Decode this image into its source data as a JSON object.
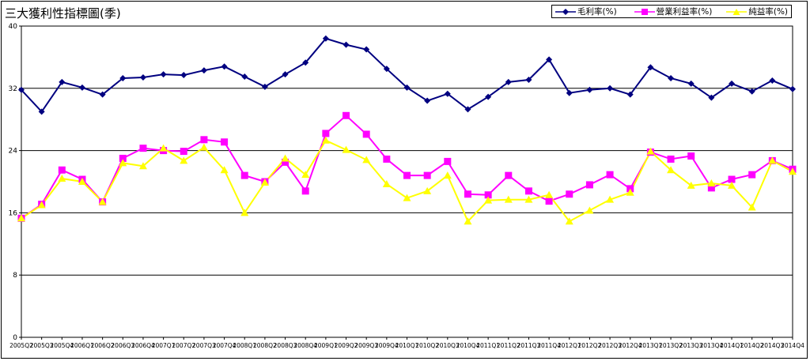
{
  "chart_data": {
    "type": "line",
    "title": "三大獲利性指標圖(季)",
    "ylim": [
      0,
      40
    ],
    "yticks": [
      0,
      8,
      16,
      24,
      32,
      40
    ],
    "grid": true,
    "legend_position": "top-right",
    "categories": [
      "2005Q2",
      "2005Q3",
      "2005Q4",
      "2006Q1",
      "2006Q2",
      "2006Q3",
      "2006Q4",
      "2007Q1",
      "2007Q2",
      "2007Q3",
      "2007Q4",
      "2008Q1",
      "2008Q2",
      "2008Q3",
      "2008Q4",
      "2009Q1",
      "2009Q2",
      "2009Q3",
      "2009Q4",
      "2010Q1",
      "2010Q2",
      "2010Q3",
      "2010Q4",
      "2011Q1",
      "2011Q2",
      "2011Q3",
      "2011Q4",
      "2012Q1",
      "2012Q2",
      "2012Q3",
      "2012Q4",
      "2013Q1",
      "2013Q2",
      "2013Q3",
      "2013Q4",
      "2014Q1",
      "2014Q2",
      "2014Q3",
      "2014Q4"
    ],
    "series": [
      {
        "name": "毛利率(%)",
        "color": "#000080",
        "marker": "diamond",
        "values": [
          31.8,
          29.0,
          32.8,
          32.1,
          31.2,
          33.3,
          33.4,
          33.8,
          33.7,
          34.3,
          34.8,
          33.5,
          32.2,
          33.8,
          35.3,
          38.4,
          37.6,
          37.0,
          34.5,
          32.1,
          30.4,
          31.3,
          29.3,
          30.9,
          32.8,
          33.1,
          35.7,
          31.4,
          31.8,
          32.0,
          31.2,
          34.7,
          33.3,
          32.6,
          30.8,
          32.6,
          31.6,
          33.0,
          31.9
        ]
      },
      {
        "name": "營業利益率(%)",
        "color": "#FF00FF",
        "marker": "square",
        "values": [
          15.3,
          17.1,
          21.5,
          20.3,
          17.4,
          23.0,
          24.3,
          24.0,
          23.9,
          25.4,
          25.1,
          20.8,
          20.0,
          22.5,
          18.8,
          26.2,
          28.5,
          26.1,
          22.9,
          20.8,
          20.8,
          22.6,
          18.4,
          18.3,
          20.8,
          18.8,
          17.5,
          18.4,
          19.6,
          20.9,
          19.1,
          23.8,
          22.9,
          23.3,
          19.2,
          20.3,
          20.9,
          22.7,
          21.6
        ]
      },
      {
        "name": "純益率(%)",
        "color": "#FFFF00",
        "marker": "triangle",
        "values": [
          15.3,
          17.0,
          20.4,
          20.0,
          17.4,
          22.4,
          22.0,
          24.3,
          22.7,
          24.4,
          21.5,
          16.0,
          19.9,
          23.0,
          20.9,
          25.3,
          24.1,
          22.8,
          19.7,
          17.9,
          18.8,
          20.8,
          14.9,
          17.6,
          17.7,
          17.7,
          18.3,
          14.9,
          16.3,
          17.7,
          18.6,
          23.9,
          21.5,
          19.5,
          19.8,
          19.5,
          16.7,
          22.7,
          21.3
        ]
      }
    ]
  }
}
